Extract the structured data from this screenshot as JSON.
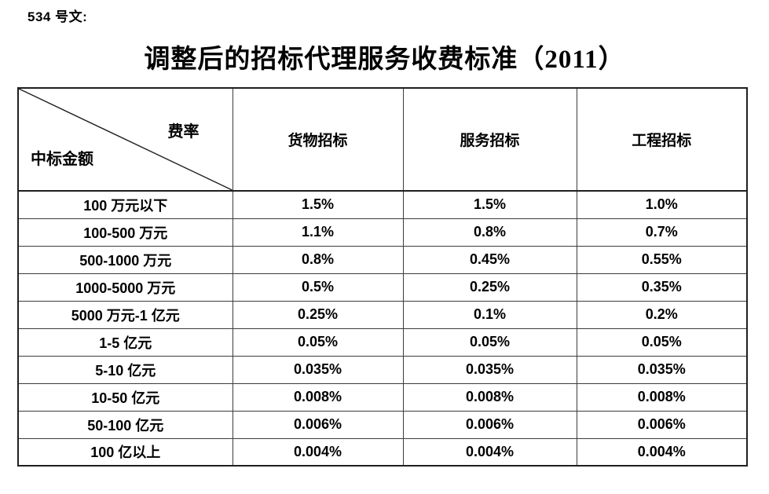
{
  "page": {
    "doc_label": "534 号文:",
    "title": "调整后的招标代理服务收费标准（2011）"
  },
  "table": {
    "corner": {
      "top_right": "费率",
      "bottom_left": "中标金额"
    },
    "columns": [
      "货物招标",
      "服务招标",
      "工程招标"
    ],
    "rows": [
      {
        "amount": "100 万元以下",
        "rates": [
          "1.5%",
          "1.5%",
          "1.0%"
        ]
      },
      {
        "amount": "100-500 万元",
        "rates": [
          "1.1%",
          "0.8%",
          "0.7%"
        ]
      },
      {
        "amount": "500-1000 万元",
        "rates": [
          "0.8%",
          "0.45%",
          "0.55%"
        ]
      },
      {
        "amount": "1000-5000 万元",
        "rates": [
          "0.5%",
          "0.25%",
          "0.35%"
        ]
      },
      {
        "amount": "5000 万元-1 亿元",
        "rates": [
          "0.25%",
          "0.1%",
          "0.2%"
        ]
      },
      {
        "amount": "1-5 亿元",
        "rates": [
          "0.05%",
          "0.05%",
          "0.05%"
        ]
      },
      {
        "amount": "5-10 亿元",
        "rates": [
          "0.035%",
          "0.035%",
          "0.035%"
        ]
      },
      {
        "amount": "10-50 亿元",
        "rates": [
          "0.008%",
          "0.008%",
          "0.008%"
        ]
      },
      {
        "amount": "50-100 亿元",
        "rates": [
          "0.006%",
          "0.006%",
          "0.006%"
        ]
      },
      {
        "amount": "100 亿以上",
        "rates": [
          "0.004%",
          "0.004%",
          "0.004%"
        ]
      }
    ]
  },
  "colors": {
    "text": "#000000",
    "background": "#ffffff",
    "outer_border": "#1f1f1f",
    "inner_border": "#3c3c3c"
  }
}
